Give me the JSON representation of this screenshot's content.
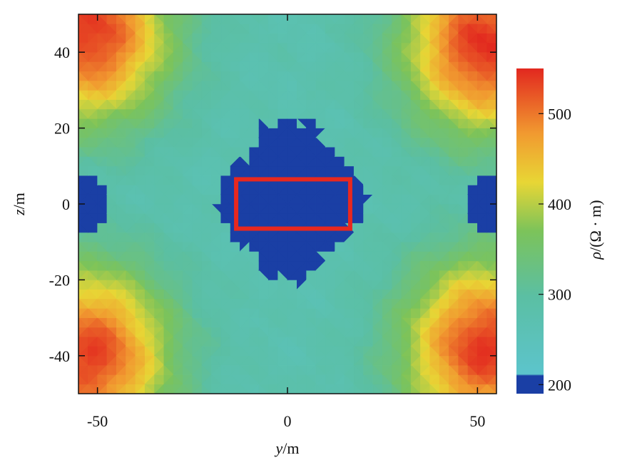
{
  "chart_data": {
    "type": "heatmap",
    "title": "",
    "xlabel": {
      "var": "y",
      "unit": "/m"
    },
    "ylabel": {
      "var": "z",
      "unit": "/m"
    },
    "xlim": [
      -55,
      55
    ],
    "ylim": [
      -50,
      50
    ],
    "x_ticks": [
      -50,
      0,
      50
    ],
    "x_tick_labels": [
      "-50",
      "0",
      "50"
    ],
    "y_ticks": [
      40,
      20,
      0,
      -20,
      -40
    ],
    "y_tick_labels": [
      "40",
      "20",
      "0",
      "-20",
      "-40"
    ],
    "colorbar": {
      "label": {
        "var": "ρ",
        "unit": "/(Ω · m)"
      },
      "range": [
        190,
        550
      ],
      "ticks": [
        500,
        400,
        300,
        200
      ],
      "tick_labels": [
        "500",
        "400",
        "300",
        "200"
      ],
      "colors": [
        "#1a3fa5",
        "#5cc4cc",
        "#5bbfa3",
        "#7cc35a",
        "#e8d635",
        "#f19a30",
        "#e2281f"
      ]
    },
    "anomaly_box": {
      "y_range": [
        -13.5,
        16.5
      ],
      "z_range": [
        -6.5,
        6.5
      ],
      "color": "#e8281f"
    },
    "resistivity_field": {
      "background": 272,
      "regions": [
        {
          "feature": "high-resistivity corner",
          "y_center": -52,
          "z_center": 45,
          "peak": 540
        },
        {
          "feature": "high-resistivity corner",
          "y_center": 52,
          "z_center": 42,
          "peak": 545
        },
        {
          "feature": "high-resistivity corner",
          "y_center": -52,
          "z_center": -40,
          "peak": 535
        },
        {
          "feature": "high-resistivity corner",
          "y_center": 52,
          "z_center": -38,
          "peak": 540
        },
        {
          "feature": "low-resistivity body",
          "y_center": 1,
          "z_center": 1,
          "value": 200
        },
        {
          "feature": "low-resistivity edge",
          "y_center": -54,
          "z_center": 0,
          "value": 200
        },
        {
          "feature": "low-resistivity edge",
          "y_center": 54,
          "z_center": 0,
          "value": 200
        }
      ]
    }
  }
}
